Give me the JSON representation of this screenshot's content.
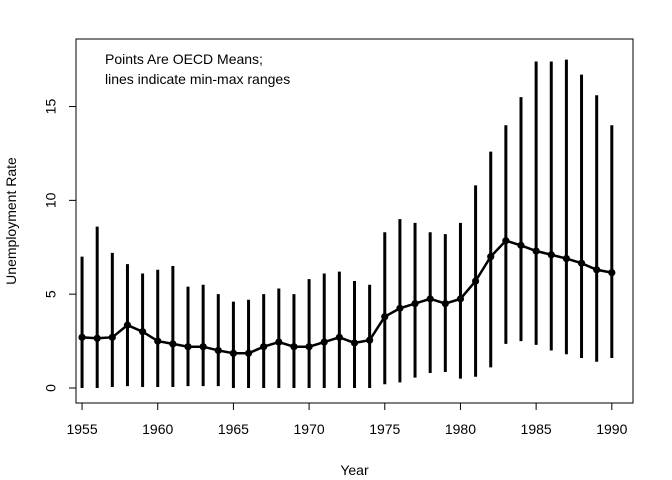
{
  "chart_data": {
    "type": "line",
    "xlabel": "Year",
    "ylabel": "Unemployment Rate",
    "annotation_lines": [
      "Points Are OECD Means;",
      "lines indicate min-max ranges"
    ],
    "xlim": [
      1954.6,
      1991.4
    ],
    "ylim": [
      -0.8,
      18.6
    ],
    "x_ticks": [
      1955,
      1960,
      1965,
      1970,
      1975,
      1980,
      1985,
      1990
    ],
    "y_ticks": [
      0,
      5,
      10,
      15
    ],
    "grid": false,
    "colors": {
      "series": "#000000",
      "axis": "#000000"
    },
    "x": [
      1955,
      1956,
      1957,
      1958,
      1959,
      1960,
      1961,
      1962,
      1963,
      1964,
      1965,
      1966,
      1967,
      1968,
      1969,
      1970,
      1971,
      1972,
      1973,
      1974,
      1975,
      1976,
      1977,
      1978,
      1979,
      1980,
      1981,
      1982,
      1983,
      1984,
      1985,
      1986,
      1987,
      1988,
      1989,
      1990
    ],
    "series": [
      {
        "mean": [
          2.7,
          2.65,
          2.7,
          3.35,
          3.0,
          2.5,
          2.35,
          2.2,
          2.2,
          2.0,
          1.85,
          1.85,
          2.2,
          2.45,
          2.2,
          2.2,
          2.45,
          2.7,
          2.4,
          2.55,
          3.8,
          4.25,
          4.5,
          4.75,
          4.5,
          4.75,
          5.7,
          7.0,
          7.85,
          7.6,
          7.3,
          7.1,
          6.9,
          6.65,
          6.3,
          6.15
        ],
        "min": [
          0.0,
          0.0,
          0.05,
          0.1,
          0.05,
          0.05,
          0.05,
          0.1,
          0.1,
          0.1,
          0.0,
          0.0,
          0.0,
          0.0,
          0.0,
          0.0,
          0.0,
          0.0,
          0.0,
          0.0,
          0.2,
          0.3,
          0.55,
          0.8,
          0.85,
          0.5,
          0.6,
          1.1,
          2.35,
          2.5,
          2.3,
          2.0,
          1.8,
          1.6,
          1.4,
          1.6
        ],
        "max": [
          7.0,
          8.6,
          7.2,
          6.6,
          6.1,
          6.3,
          6.5,
          5.4,
          5.5,
          5.0,
          4.6,
          4.7,
          5.0,
          5.3,
          5.0,
          5.8,
          6.1,
          6.2,
          5.7,
          5.5,
          8.3,
          9.0,
          8.8,
          8.3,
          8.2,
          8.8,
          10.8,
          12.6,
          14.0,
          15.5,
          17.4,
          17.4,
          17.5,
          16.7,
          15.6,
          14.0
        ]
      }
    ]
  }
}
